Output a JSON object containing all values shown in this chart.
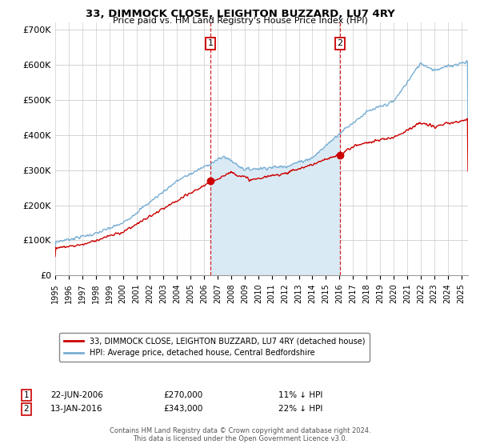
{
  "title": "33, DIMMOCK CLOSE, LEIGHTON BUZZARD, LU7 4RY",
  "subtitle": "Price paid vs. HM Land Registry's House Price Index (HPI)",
  "legend_line1": "33, DIMMOCK CLOSE, LEIGHTON BUZZARD, LU7 4RY (detached house)",
  "legend_line2": "HPI: Average price, detached house, Central Bedfordshire",
  "annotation1": {
    "label": "1",
    "date": "22-JUN-2006",
    "price": "£270,000",
    "note": "11% ↓ HPI"
  },
  "annotation2": {
    "label": "2",
    "date": "13-JAN-2016",
    "price": "£343,000",
    "note": "22% ↓ HPI"
  },
  "footer": "Contains HM Land Registry data © Crown copyright and database right 2024.\nThis data is licensed under the Open Government Licence v3.0.",
  "sale1_x": 2006.47,
  "sale1_y": 270000,
  "sale2_x": 2016.04,
  "sale2_y": 343000,
  "red_color": "#cc0000",
  "blue_color": "#7aafd4",
  "blue_fill_color": "#daeaf5",
  "vline_color": "#cc0000",
  "background_color": "#ffffff",
  "grid_color": "#cccccc",
  "ylim": [
    0,
    720000
  ],
  "xlim": [
    1995,
    2025.5
  ],
  "yticks": [
    0,
    100000,
    200000,
    300000,
    400000,
    500000,
    600000,
    700000
  ],
  "ytick_labels": [
    "£0",
    "£100K",
    "£200K",
    "£300K",
    "£400K",
    "£500K",
    "£600K",
    "£700K"
  ],
  "xticks": [
    1995,
    1996,
    1997,
    1998,
    1999,
    2000,
    2001,
    2002,
    2003,
    2004,
    2005,
    2006,
    2007,
    2008,
    2009,
    2010,
    2011,
    2012,
    2013,
    2014,
    2015,
    2016,
    2017,
    2018,
    2019,
    2020,
    2021,
    2022,
    2023,
    2024,
    2025
  ]
}
